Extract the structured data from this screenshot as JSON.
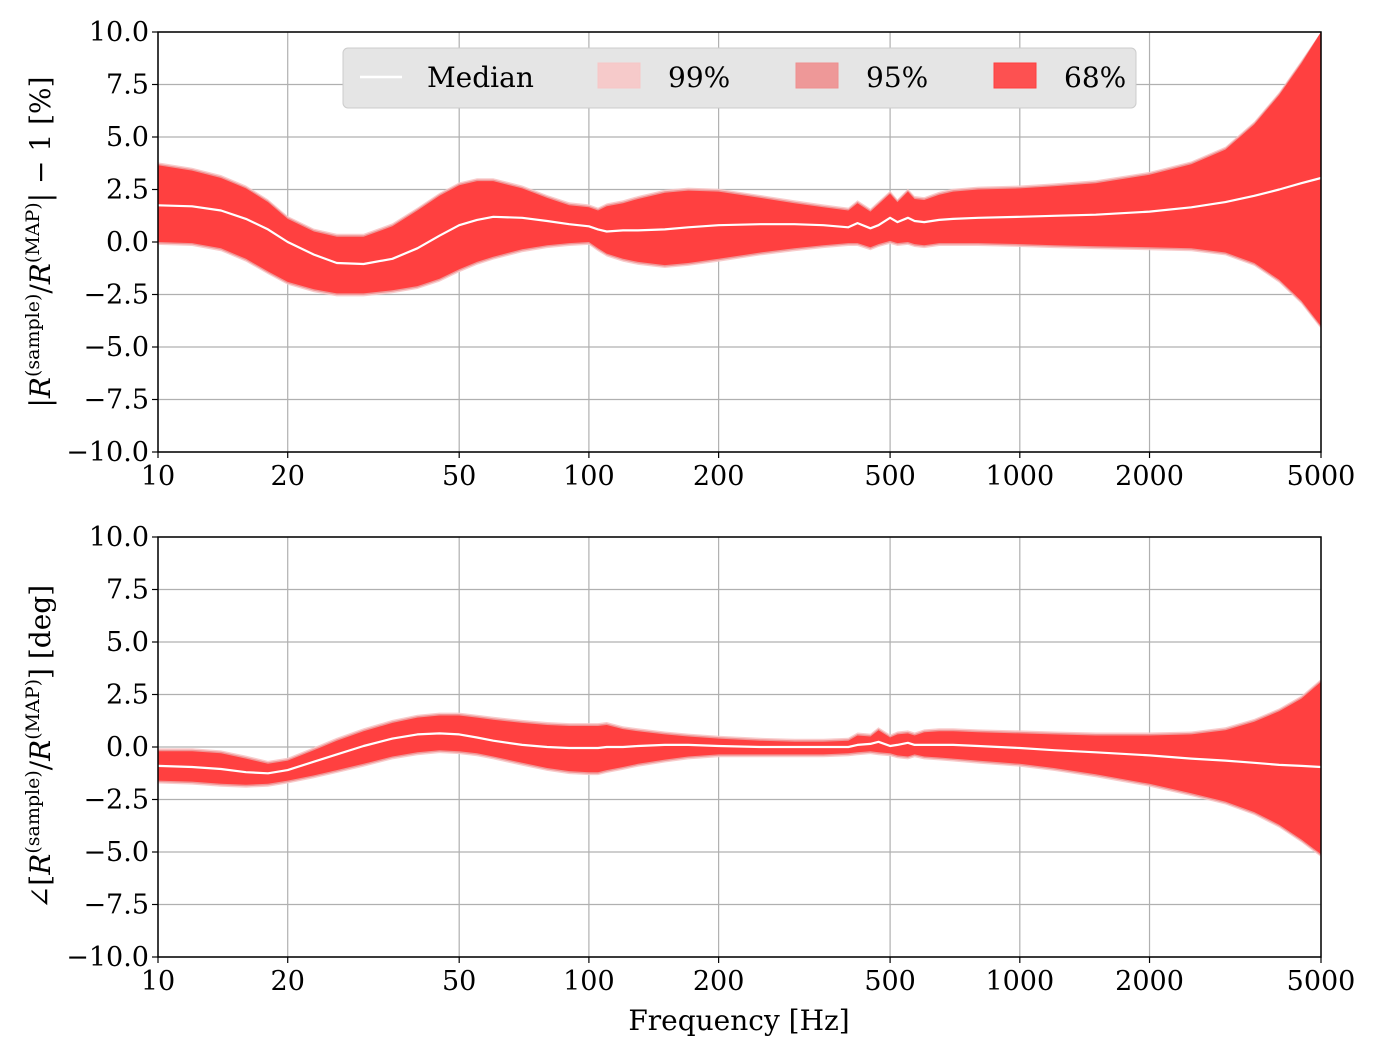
{
  "figure": {
    "xlabel": "Frequency [Hz]"
  },
  "legend": {
    "placement": "top-center",
    "entries": [
      {
        "label": "Median",
        "kind": "line",
        "color": "#ffffff"
      },
      {
        "label": "99%",
        "kind": "band",
        "color": "#f7c6c6"
      },
      {
        "label": "95%",
        "kind": "band",
        "color": "#ee8f8f"
      },
      {
        "label": "68%",
        "kind": "band",
        "color": "#ff4040"
      }
    ]
  },
  "colors": {
    "band_68": "#ff4040",
    "band_95": "#ee8f8f",
    "band_99": "#f7c6c6",
    "median": "#ffffff",
    "grid": "#b0b0b0",
    "legend_bg": "#e5e5e5"
  },
  "chart_data": [
    {
      "type": "area",
      "ylabel": "|R(sample)/R(MAP)| − 1 [%]",
      "ylabel_parts": {
        "open": "|",
        "base1": "R",
        "sup1": "(sample)",
        "slash": "/",
        "base2": "R",
        "sup2": "(MAP)",
        "close": "| − 1 [%]"
      },
      "xscale": "log",
      "xlim": [
        10,
        5000
      ],
      "ylim": [
        -10,
        10
      ],
      "grid": true,
      "xticks": [
        10,
        20,
        50,
        100,
        200,
        500,
        1000,
        2000,
        5000
      ],
      "xtick_labels": [
        "10",
        "20",
        "50",
        "100",
        "200",
        "500",
        "1000",
        "2000",
        "5000"
      ],
      "yticks": [
        -10,
        -7.5,
        -5,
        -2.5,
        0,
        2.5,
        5,
        7.5,
        10
      ],
      "ytick_labels": [
        "−10.0",
        "−7.5",
        "−5.0",
        "−2.5",
        "0.0",
        "2.5",
        "5.0",
        "7.5",
        "10.0"
      ],
      "x": [
        10,
        12,
        14,
        16,
        18,
        20,
        23,
        26,
        30,
        35,
        40,
        45,
        50,
        55,
        60,
        70,
        80,
        90,
        100,
        105,
        110,
        120,
        130,
        150,
        170,
        200,
        250,
        300,
        350,
        400,
        420,
        450,
        470,
        500,
        520,
        550,
        570,
        600,
        650,
        700,
        800,
        1000,
        1200,
        1500,
        2000,
        2500,
        3000,
        3500,
        4000,
        4500,
        5000
      ],
      "series": [
        {
          "name": "Median",
          "role": "median",
          "values": [
            1.75,
            1.7,
            1.5,
            1.1,
            0.6,
            0.0,
            -0.6,
            -1.0,
            -1.05,
            -0.8,
            -0.3,
            0.3,
            0.8,
            1.05,
            1.2,
            1.15,
            1.0,
            0.85,
            0.75,
            0.6,
            0.5,
            0.55,
            0.55,
            0.6,
            0.7,
            0.8,
            0.85,
            0.85,
            0.8,
            0.7,
            0.9,
            0.65,
            0.8,
            1.15,
            0.95,
            1.15,
            1.0,
            0.95,
            1.05,
            1.1,
            1.15,
            1.2,
            1.25,
            1.3,
            1.45,
            1.65,
            1.9,
            2.2,
            2.5,
            2.8,
            3.05
          ]
        },
        {
          "name": "68%",
          "role": "band",
          "lower": [
            0.0,
            -0.05,
            -0.3,
            -0.8,
            -1.4,
            -1.9,
            -2.25,
            -2.45,
            -2.45,
            -2.3,
            -2.1,
            -1.75,
            -1.3,
            -0.95,
            -0.7,
            -0.35,
            -0.15,
            -0.05,
            0.0,
            -0.3,
            -0.55,
            -0.8,
            -0.95,
            -1.1,
            -1.0,
            -0.8,
            -0.5,
            -0.3,
            -0.15,
            -0.05,
            -0.05,
            -0.25,
            -0.1,
            0.05,
            -0.05,
            0.0,
            -0.1,
            -0.15,
            -0.05,
            -0.05,
            -0.05,
            -0.1,
            -0.15,
            -0.2,
            -0.25,
            -0.3,
            -0.5,
            -1.0,
            -1.8,
            -2.8,
            -4.0
          ],
          "upper": [
            3.65,
            3.4,
            3.05,
            2.55,
            1.9,
            1.1,
            0.5,
            0.25,
            0.25,
            0.75,
            1.5,
            2.2,
            2.7,
            2.9,
            2.9,
            2.55,
            2.1,
            1.75,
            1.65,
            1.5,
            1.7,
            1.85,
            2.05,
            2.35,
            2.45,
            2.4,
            2.1,
            1.85,
            1.65,
            1.5,
            1.85,
            1.45,
            1.8,
            2.3,
            1.9,
            2.4,
            2.05,
            2.0,
            2.25,
            2.4,
            2.5,
            2.55,
            2.65,
            2.8,
            3.2,
            3.7,
            4.4,
            5.6,
            7.0,
            8.5,
            10.0
          ]
        }
      ]
    },
    {
      "type": "area",
      "ylabel": "∠[R(sample)/R(MAP)] [deg]",
      "ylabel_parts": {
        "open": "∠[",
        "base1": "R",
        "sup1": "(sample)",
        "slash": "/",
        "base2": "R",
        "sup2": "(MAP)",
        "close": "] [deg]"
      },
      "xlabel": "Frequency [Hz]",
      "xscale": "log",
      "xlim": [
        10,
        5000
      ],
      "ylim": [
        -10,
        10
      ],
      "grid": true,
      "xticks": [
        10,
        20,
        50,
        100,
        200,
        500,
        1000,
        2000,
        5000
      ],
      "xtick_labels": [
        "10",
        "20",
        "50",
        "100",
        "200",
        "500",
        "1000",
        "2000",
        "5000"
      ],
      "yticks": [
        -10,
        -7.5,
        -5,
        -2.5,
        0,
        2.5,
        5,
        7.5,
        10
      ],
      "ytick_labels": [
        "−10.0",
        "−7.5",
        "−5.0",
        "−2.5",
        "0.0",
        "2.5",
        "5.0",
        "7.5",
        "10.0"
      ],
      "x": [
        10,
        12,
        14,
        16,
        18,
        20,
        23,
        26,
        30,
        35,
        40,
        45,
        50,
        55,
        60,
        70,
        80,
        90,
        100,
        105,
        110,
        120,
        130,
        150,
        170,
        200,
        250,
        300,
        350,
        400,
        420,
        450,
        470,
        500,
        520,
        550,
        570,
        600,
        650,
        700,
        800,
        1000,
        1200,
        1500,
        2000,
        2500,
        3000,
        3500,
        4000,
        4500,
        5000
      ],
      "series": [
        {
          "name": "Median",
          "role": "median",
          "values": [
            -0.9,
            -0.95,
            -1.05,
            -1.2,
            -1.25,
            -1.1,
            -0.7,
            -0.35,
            0.05,
            0.4,
            0.6,
            0.65,
            0.6,
            0.45,
            0.3,
            0.1,
            0.0,
            -0.05,
            -0.05,
            -0.05,
            0.0,
            0.0,
            0.05,
            0.1,
            0.1,
            0.05,
            0.0,
            0.0,
            0.0,
            0.0,
            0.1,
            0.15,
            0.25,
            0.05,
            0.1,
            0.2,
            0.1,
            0.1,
            0.1,
            0.1,
            0.05,
            -0.05,
            -0.15,
            -0.25,
            -0.4,
            -0.55,
            -0.65,
            -0.75,
            -0.85,
            -0.9,
            -0.95
          ]
        },
        {
          "name": "68%",
          "role": "band",
          "lower": [
            -1.6,
            -1.65,
            -1.75,
            -1.8,
            -1.75,
            -1.6,
            -1.35,
            -1.1,
            -0.8,
            -0.45,
            -0.25,
            -0.15,
            -0.2,
            -0.3,
            -0.45,
            -0.75,
            -1.0,
            -1.15,
            -1.2,
            -1.2,
            -1.1,
            -0.95,
            -0.8,
            -0.6,
            -0.45,
            -0.35,
            -0.35,
            -0.35,
            -0.35,
            -0.3,
            -0.25,
            -0.2,
            -0.25,
            -0.3,
            -0.4,
            -0.45,
            -0.35,
            -0.45,
            -0.5,
            -0.55,
            -0.65,
            -0.8,
            -1.0,
            -1.3,
            -1.75,
            -2.2,
            -2.6,
            -3.1,
            -3.7,
            -4.4,
            -5.1
          ],
          "upper": [
            -0.2,
            -0.2,
            -0.3,
            -0.55,
            -0.8,
            -0.65,
            -0.15,
            0.3,
            0.75,
            1.15,
            1.4,
            1.5,
            1.5,
            1.4,
            1.3,
            1.15,
            1.05,
            1.0,
            1.0,
            1.0,
            1.05,
            0.85,
            0.75,
            0.6,
            0.5,
            0.4,
            0.3,
            0.25,
            0.25,
            0.3,
            0.55,
            0.5,
            0.8,
            0.45,
            0.6,
            0.65,
            0.55,
            0.7,
            0.75,
            0.75,
            0.7,
            0.65,
            0.6,
            0.55,
            0.55,
            0.6,
            0.8,
            1.2,
            1.7,
            2.3,
            3.1
          ]
        }
      ]
    }
  ]
}
